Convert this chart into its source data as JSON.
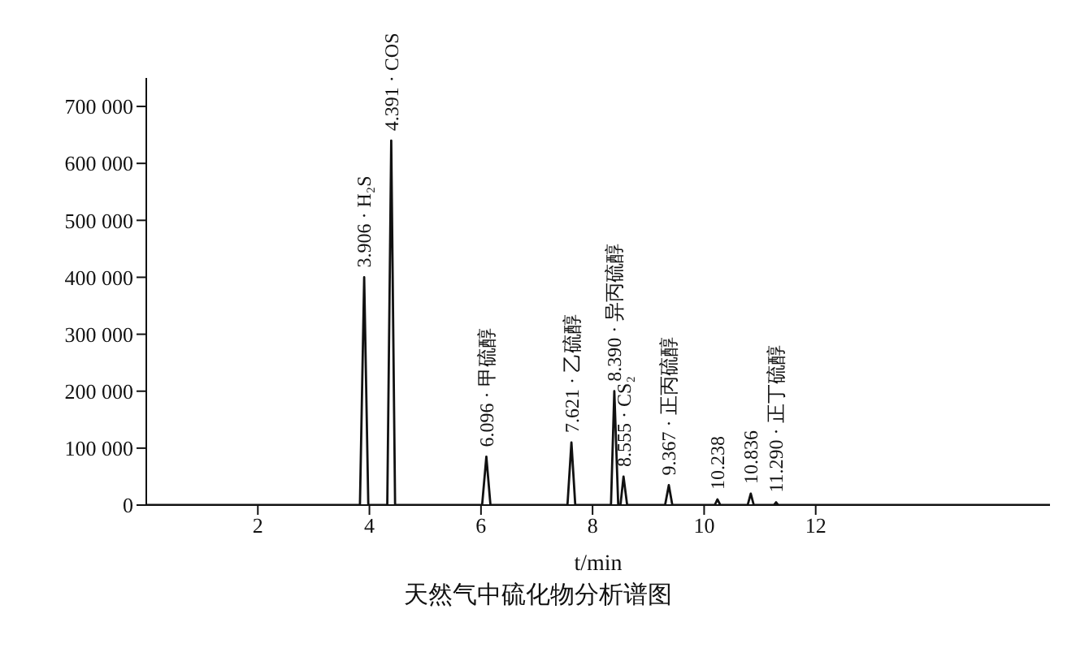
{
  "chart_data": {
    "type": "line",
    "title": "天然气中硫化物分析谱图",
    "xlabel": "t/min",
    "series": [
      {
        "color": "#111111",
        "x": [
          0,
          3.83,
          3.906,
          3.98,
          4.32,
          4.391,
          4.46,
          6.02,
          6.096,
          6.17,
          7.55,
          7.621,
          7.69,
          8.33,
          8.39,
          8.46,
          8.5,
          8.555,
          8.62,
          9.3,
          9.367,
          9.43,
          10.19,
          10.238,
          10.29,
          10.78,
          10.836,
          10.89,
          11.25,
          11.29,
          11.33,
          16.2
        ],
        "values": [
          0,
          0,
          400000,
          0,
          0,
          640000,
          0,
          0,
          85000,
          0,
          0,
          110000,
          0,
          0,
          200000,
          0,
          0,
          50000,
          0,
          0,
          35000,
          0,
          0,
          10000,
          0,
          0,
          20000,
          0,
          0,
          5000,
          0,
          0
        ]
      }
    ],
    "xlim": [
      0,
      16.2
    ],
    "xticks": [
      2,
      4,
      6,
      8,
      10,
      12
    ],
    "ylim": [
      0,
      750000
    ],
    "yticks": [
      0,
      {
        "value": 100000,
        "label": "100 000"
      },
      {
        "value": 200000,
        "label": "200 000"
      },
      {
        "value": 300000,
        "label": "300 000"
      },
      {
        "value": 400000,
        "label": "400 000"
      },
      {
        "value": 500000,
        "label": "500 000"
      },
      {
        "value": 600000,
        "label": "600 000"
      },
      {
        "value": 700000,
        "label": "700 000"
      }
    ],
    "marker": "none",
    "line_style": "solid",
    "grid": false,
    "legend": false,
    "annotations": [
      {
        "text": "3.906 · H₂S",
        "x": 3.906,
        "y": 400000
      },
      {
        "text": "4.391 · COS",
        "x": 4.391,
        "y": 640000
      },
      {
        "text": "6.096 · 甲硫醇",
        "x": 6.096,
        "y": 85000
      },
      {
        "text": "7.621 · 乙硫醇",
        "x": 7.621,
        "y": 110000
      },
      {
        "text": "8.390 · 异丙硫醇",
        "x": 8.39,
        "y": 200000
      },
      {
        "text": "8.555 · CS₂",
        "x": 8.555,
        "y": 50000
      },
      {
        "text": "9.367 · 正丙硫醇",
        "x": 9.367,
        "y": 35000
      },
      {
        "text": "10.238",
        "x": 10.238,
        "y": 10000
      },
      {
        "text": "10.836",
        "x": 10.836,
        "y": 20000
      },
      {
        "text": "11.290 · 正丁硫醇",
        "x": 11.29,
        "y": 5000
      }
    ]
  }
}
